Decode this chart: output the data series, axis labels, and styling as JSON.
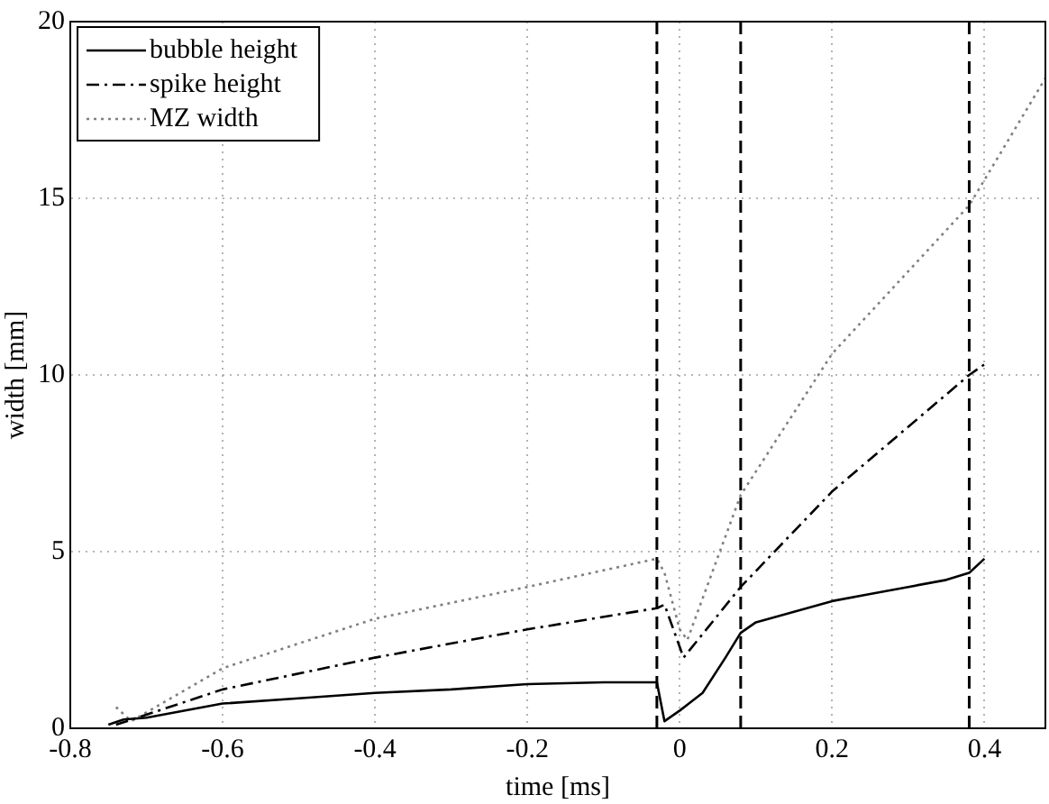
{
  "chart_data": {
    "type": "line",
    "xlabel": "time [ms]",
    "ylabel": "width [mm]",
    "xlim": [
      -0.8,
      0.48
    ],
    "xticks": [
      -0.8,
      -0.6,
      -0.4,
      -0.2,
      0,
      0.2,
      0.4
    ],
    "ylim": [
      0,
      20
    ],
    "yticks": [
      0,
      5,
      10,
      15,
      20
    ],
    "grid": true,
    "legend": "top left",
    "marker": "none",
    "series": [
      {
        "name": "bubble height",
        "color": "#000000",
        "line_style": "solid",
        "x": [
          -0.75,
          -0.73,
          -0.7,
          -0.6,
          -0.5,
          -0.4,
          -0.3,
          -0.2,
          -0.1,
          -0.03,
          -0.02,
          0,
          0.03,
          0.06,
          0.08,
          0.1,
          0.15,
          0.2,
          0.25,
          0.3,
          0.35,
          0.38,
          0.4
        ],
        "values": [
          0.1,
          0.25,
          0.3,
          0.7,
          0.85,
          1.0,
          1.1,
          1.25,
          1.3,
          1.3,
          0.2,
          0.5,
          1.0,
          2.0,
          2.7,
          3.0,
          3.3,
          3.6,
          3.8,
          4.0,
          4.2,
          4.4,
          4.8
        ]
      },
      {
        "name": "spike height",
        "color": "#000000",
        "line_style": "dashdot",
        "x": [
          -0.74,
          -0.6,
          -0.4,
          -0.2,
          -0.03,
          -0.02,
          0.005,
          0.08,
          0.2,
          0.38,
          0.4
        ],
        "values": [
          0.1,
          1.1,
          2.0,
          2.8,
          3.4,
          3.5,
          2.0,
          4.0,
          6.7,
          10.0,
          10.3
        ]
      },
      {
        "name": "MZ width",
        "color": "#808080",
        "line_style": "dotted",
        "x": [
          -0.74,
          -0.72,
          -0.6,
          -0.4,
          -0.2,
          -0.03,
          -0.02,
          0,
          0.01,
          0.08,
          0.2,
          0.38,
          0.48
        ],
        "values": [
          0.6,
          0.2,
          1.7,
          3.1,
          4.0,
          4.8,
          4.4,
          2.8,
          2.5,
          6.6,
          10.6,
          14.8,
          18.4
        ]
      }
    ],
    "ref_lines": [
      {
        "axis": "x",
        "value": -0.03,
        "color": "#000000",
        "line_style": "dashed"
      },
      {
        "axis": "x",
        "value": 0.08,
        "color": "#000000",
        "line_style": "dashed"
      },
      {
        "axis": "x",
        "value": 0.38,
        "color": "#000000",
        "line_style": "dashed"
      }
    ]
  }
}
